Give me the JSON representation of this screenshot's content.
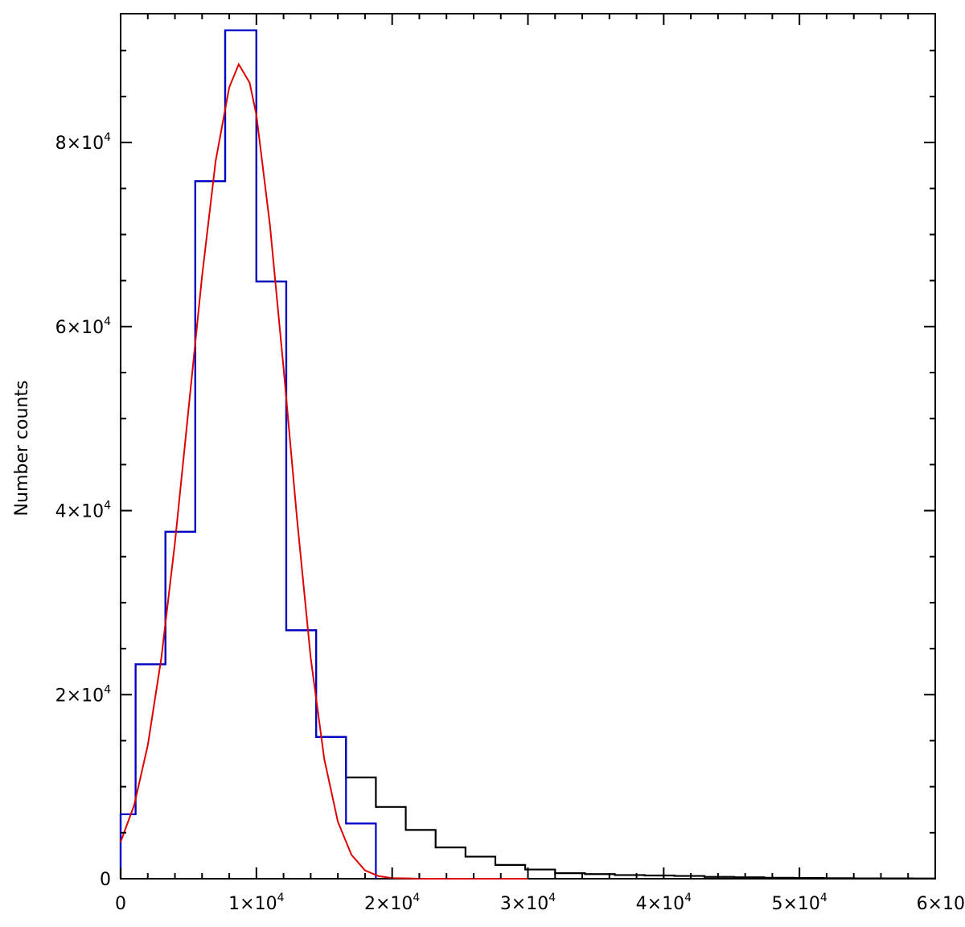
{
  "chart_data": {
    "type": "histogram",
    "title": "",
    "xlabel": "",
    "ylabel": "Number counts",
    "xlim": [
      0,
      60000
    ],
    "ylim": [
      0,
      94000
    ],
    "grid": false,
    "legend": "none",
    "x_ticks": [
      {
        "value": 0,
        "mantissa": "0",
        "exponent": ""
      },
      {
        "value": 10000,
        "mantissa": "1×10",
        "exponent": "4"
      },
      {
        "value": 20000,
        "mantissa": "2×10",
        "exponent": "4"
      },
      {
        "value": 30000,
        "mantissa": "3×10",
        "exponent": "4"
      },
      {
        "value": 40000,
        "mantissa": "4×10",
        "exponent": "4"
      },
      {
        "value": 50000,
        "mantissa": "5×10",
        "exponent": "4"
      },
      {
        "value": 60000,
        "mantissa": "6×10",
        "exponent": ""
      }
    ],
    "y_ticks": [
      {
        "value": 0,
        "mantissa": "0",
        "exponent": ""
      },
      {
        "value": 20000,
        "mantissa": "2×10",
        "exponent": "4"
      },
      {
        "value": 40000,
        "mantissa": "4×10",
        "exponent": "4"
      },
      {
        "value": 60000,
        "mantissa": "6×10",
        "exponent": "4"
      },
      {
        "value": 80000,
        "mantissa": "8×10",
        "exponent": "4"
      }
    ],
    "series": [
      {
        "color": "#000000",
        "style": "step",
        "bin_edges": [
          0,
          1100,
          3300,
          5500,
          7700,
          10000,
          12200,
          14400,
          16600,
          18800,
          21000,
          23200,
          25400,
          27600,
          29800,
          32000,
          34200,
          36400,
          38600,
          40800,
          43000,
          45200,
          47400,
          49600,
          51800,
          54000,
          56200,
          58400,
          60000
        ],
        "values": [
          7000,
          23300,
          37700,
          75800,
          92200,
          64900,
          27000,
          15400,
          11000,
          7800,
          5300,
          3400,
          2400,
          1500,
          1000,
          600,
          500,
          400,
          350,
          300,
          200,
          150,
          100,
          80,
          60,
          40,
          30,
          20
        ]
      },
      {
        "color": "#0000cc",
        "style": "step",
        "bin_edges": [
          0,
          1100,
          3300,
          5500,
          7700,
          10000,
          12200,
          14400,
          16600,
          18800
        ],
        "values": [
          7000,
          23300,
          37700,
          75800,
          92200,
          64900,
          27000,
          15400,
          6000
        ]
      },
      {
        "color": "#dd0000",
        "style": "curve",
        "x": [
          0,
          1000,
          2000,
          3000,
          4000,
          5000,
          6000,
          7000,
          8000,
          8700,
          9500,
          10000,
          11000,
          12000,
          13000,
          14000,
          15000,
          16000,
          17000,
          18000,
          19000,
          20000,
          22000,
          26000,
          30000
        ],
        "y": [
          4000,
          8000,
          14500,
          24000,
          36500,
          51000,
          65500,
          78000,
          86000,
          88500,
          86500,
          83000,
          71000,
          55500,
          39000,
          24000,
          13000,
          6200,
          2600,
          900,
          280,
          70,
          5,
          0,
          0
        ]
      }
    ]
  }
}
